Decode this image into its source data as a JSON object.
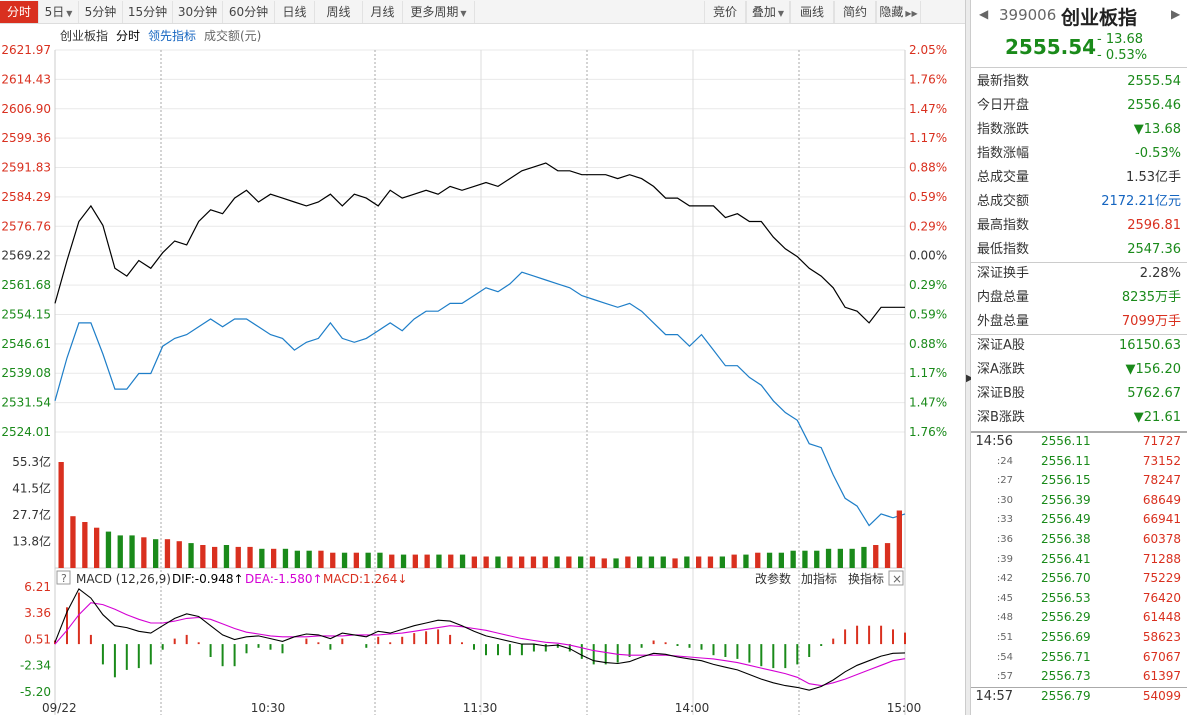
{
  "toolbar": {
    "tabs": [
      "分时",
      "5日",
      "5分钟",
      "15分钟",
      "30分钟",
      "60分钟",
      "日线",
      "周线",
      "月线",
      "更多周期"
    ],
    "right": [
      "竞价",
      "叠加",
      "画线",
      "简约",
      "隐藏"
    ]
  },
  "chart": {
    "legend": {
      "name": "创业板指",
      "period": "分时",
      "lead": "领先指标",
      "vol": "成交额(元)"
    },
    "price_labels": [
      "2621.97",
      "2614.43",
      "2606.90",
      "2599.36",
      "2591.83",
      "2584.29",
      "2576.76",
      "2569.22",
      "2561.68",
      "2554.15",
      "2546.61",
      "2539.08",
      "2531.54",
      "2524.01"
    ],
    "pct_labels": [
      "2.05%",
      "1.76%",
      "1.47%",
      "1.17%",
      "0.88%",
      "0.59%",
      "0.29%",
      "0.00%",
      "0.29%",
      "0.59%",
      "0.88%",
      "1.17%",
      "1.47%",
      "1.76%"
    ],
    "vol_labels": [
      "55.3亿",
      "41.5亿",
      "27.7亿",
      "13.8亿"
    ],
    "macd_labels": [
      "6.21",
      "3.36",
      "0.51",
      "-2.34",
      "-5.20"
    ],
    "macd_header": {
      "help": "?",
      "name": "MACD (12,26,9)",
      "dif": "DIF:-0.948↑",
      "dea": "DEA:-1.580↑",
      "macd": "MACD:1.264↓",
      "btn1": "改参数",
      "btn2": "加指标",
      "btn3": "换指标",
      "close": "×"
    },
    "time_labels": [
      "09/22",
      "10:30",
      "11:30",
      "14:00",
      "15:00"
    ],
    "colors": {
      "up": "#d9301f",
      "down": "#1a8a1a",
      "price_line": "#000000",
      "lead_line": "#1e7ec8",
      "dif": "#000000",
      "dea": "#d400d4"
    }
  },
  "chart_data": {
    "type": "line",
    "title": "创业板指 分时",
    "prev_close": 2569.22,
    "ylim": [
      2524.01,
      2621.97
    ],
    "price": [
      2557,
      2568,
      2578,
      2582,
      2577,
      2566,
      2564,
      2568,
      2566,
      2570,
      2573,
      2572,
      2578,
      2581,
      2580,
      2584,
      2586,
      2583,
      2585,
      2584,
      2583,
      2582,
      2583,
      2585,
      2582,
      2585,
      2584,
      2582,
      2586,
      2584,
      2585,
      2586,
      2585,
      2587,
      2586,
      2587,
      2588,
      2587,
      2589,
      2591,
      2592,
      2593,
      2591,
      2591,
      2590,
      2590,
      2590,
      2589,
      2590,
      2589,
      2587,
      2584,
      2584,
      2582,
      2582,
      2582,
      2579,
      2580,
      2578,
      2578,
      2574,
      2571,
      2569,
      2566,
      2564,
      2561,
      2556,
      2555,
      2552,
      2556,
      2556,
      2556
    ],
    "lead": [
      2532,
      2543,
      2552,
      2552,
      2544,
      2535,
      2535,
      2539,
      2539,
      2546,
      2548,
      2549,
      2551,
      2553,
      2551,
      2553,
      2553,
      2551,
      2549,
      2548,
      2545,
      2547,
      2548,
      2552,
      2548,
      2547,
      2548,
      2550,
      2552,
      2550,
      2553,
      2555,
      2555,
      2557,
      2557,
      2559,
      2561,
      2560,
      2562,
      2565,
      2564,
      2563,
      2562,
      2561,
      2559,
      2558,
      2557,
      2556,
      2557,
      2555,
      2552,
      2549,
      2549,
      2546,
      2549,
      2545,
      2541,
      2541,
      2538,
      2536,
      2532,
      2529,
      2527,
      2521,
      2520,
      2513,
      2507,
      2505,
      2500,
      2503,
      2502,
      2503
    ],
    "volume": [
      55.3,
      27,
      24,
      21,
      19,
      17,
      17,
      16,
      15,
      15,
      14,
      13,
      12,
      11,
      12,
      11,
      11,
      10,
      10,
      10,
      9,
      9,
      9,
      8,
      8,
      8,
      8,
      8,
      7,
      7,
      7,
      7,
      7,
      7,
      7,
      6,
      6,
      6,
      6,
      6,
      6,
      6,
      6,
      6,
      6,
      6,
      5,
      5,
      6,
      6,
      6,
      6,
      5,
      6,
      6,
      6,
      6,
      7,
      7,
      8,
      8,
      8,
      9,
      9,
      9,
      10,
      10,
      10,
      11,
      12,
      13,
      30
    ],
    "macd": {
      "dif": [
        0.2,
        3.5,
        6.0,
        5.0,
        3.2,
        2.0,
        1.8,
        1.4,
        1.2,
        2.0,
        2.8,
        3.3,
        3.0,
        2.0,
        1.0,
        0.5,
        0.8,
        0.9,
        0.6,
        0.3,
        0.8,
        1.1,
        1.0,
        0.6,
        1.2,
        1.0,
        0.8,
        1.4,
        1.2,
        1.6,
        2.0,
        2.3,
        2.6,
        2.5,
        2.0,
        1.4,
        0.9,
        0.6,
        0.3,
        0.0,
        0.0,
        -0.2,
        -0.1,
        -0.5,
        -1.2,
        -1.8,
        -2.0,
        -2.1,
        -1.9,
        -1.4,
        -1.0,
        -1.1,
        -1.4,
        -1.6,
        -1.8,
        -2.2,
        -2.5,
        -2.8,
        -3.3,
        -3.8,
        -4.2,
        -4.5,
        -4.7,
        -5.0,
        -4.6,
        -3.9,
        -3.0,
        -2.3,
        -1.8,
        -1.3,
        -1.0,
        -0.95
      ],
      "dea": [
        0.0,
        1.5,
        3.2,
        4.5,
        4.3,
        3.8,
        3.2,
        2.7,
        2.3,
        2.3,
        2.5,
        2.8,
        2.9,
        2.7,
        2.2,
        1.7,
        1.3,
        1.1,
        0.9,
        0.8,
        0.8,
        0.8,
        0.9,
        0.9,
        0.9,
        1.0,
        1.0,
        1.0,
        1.1,
        1.2,
        1.4,
        1.6,
        1.8,
        2.0,
        1.9,
        1.7,
        1.5,
        1.2,
        0.9,
        0.6,
        0.4,
        0.2,
        0.1,
        -0.1,
        -0.4,
        -0.7,
        -0.9,
        -1.1,
        -1.2,
        -1.2,
        -1.2,
        -1.2,
        -1.3,
        -1.4,
        -1.5,
        -1.6,
        -1.8,
        -2.0,
        -2.3,
        -2.6,
        -2.9,
        -3.2,
        -3.6,
        -4.3,
        -4.5,
        -4.2,
        -3.8,
        -3.3,
        -2.8,
        -2.3,
        -1.8,
        -1.58
      ],
      "hist": [
        0.4,
        4.0,
        5.6,
        1.0,
        -2.2,
        -3.6,
        -2.8,
        -2.6,
        -2.2,
        -0.6,
        0.6,
        1.0,
        0.2,
        -1.4,
        -2.4,
        -2.4,
        -1.0,
        -0.4,
        -0.6,
        -1.0,
        0.0,
        0.6,
        0.2,
        -0.6,
        0.6,
        0.0,
        -0.4,
        0.8,
        0.2,
        0.8,
        1.2,
        1.4,
        1.6,
        1.0,
        0.2,
        -0.6,
        -1.2,
        -1.2,
        -1.2,
        -1.2,
        -0.8,
        -0.8,
        -0.4,
        -0.8,
        -1.6,
        -2.2,
        -2.2,
        -2.0,
        -1.4,
        -0.4,
        0.4,
        0.2,
        -0.2,
        -0.4,
        -0.6,
        -1.2,
        -1.4,
        -1.6,
        -2.0,
        -2.4,
        -2.6,
        -2.6,
        -2.2,
        -1.4,
        -0.2,
        0.6,
        1.6,
        2.0,
        2.0,
        2.0,
        1.6,
        1.26
      ]
    }
  },
  "panel": {
    "code": "399006",
    "name": "创业板指",
    "price": "2555.54",
    "change": "- 13.68",
    "change_pct": "- 0.53%",
    "stats": [
      {
        "label": "最新指数",
        "value": "2555.54",
        "color": "green"
      },
      {
        "label": "今日开盘",
        "value": "2556.46",
        "color": "green"
      },
      {
        "label": "指数涨跌",
        "value": "▼13.68",
        "color": "green"
      },
      {
        "label": "指数涨幅",
        "value": "-0.53%",
        "color": "green"
      },
      {
        "label": "总成交量",
        "value": "1.53亿手",
        "color": "black"
      },
      {
        "label": "总成交额",
        "value": "2172.21亿元",
        "color": "blue"
      },
      {
        "label": "最高指数",
        "value": "2596.81",
        "color": "red"
      },
      {
        "label": "最低指数",
        "value": "2547.36",
        "color": "green"
      },
      {
        "label": "深证换手",
        "value": "2.28%",
        "color": "black"
      },
      {
        "label": "内盘总量",
        "value": "8235万手",
        "color": "green"
      },
      {
        "label": "外盘总量",
        "value": "7099万手",
        "color": "red"
      },
      {
        "label": "深证A股",
        "value": "16150.63",
        "color": "green"
      },
      {
        "label": "深A涨跌",
        "value": "▼156.20",
        "color": "green"
      },
      {
        "label": "深证B股",
        "value": "5762.67",
        "color": "green"
      },
      {
        "label": "深B涨跌",
        "value": "▼21.61",
        "color": "green"
      }
    ],
    "ticks": [
      {
        "t": "14:56",
        "p": "2556.11",
        "v": "71727"
      },
      {
        "t": ":24",
        "p": "2556.11",
        "v": "73152"
      },
      {
        "t": ":27",
        "p": "2556.15",
        "v": "78247"
      },
      {
        "t": ":30",
        "p": "2556.39",
        "v": "68649"
      },
      {
        "t": ":33",
        "p": "2556.49",
        "v": "66941"
      },
      {
        "t": ":36",
        "p": "2556.38",
        "v": "60378"
      },
      {
        "t": ":39",
        "p": "2556.41",
        "v": "71288"
      },
      {
        "t": ":42",
        "p": "2556.70",
        "v": "75229"
      },
      {
        "t": ":45",
        "p": "2556.53",
        "v": "76420"
      },
      {
        "t": ":48",
        "p": "2556.29",
        "v": "61448"
      },
      {
        "t": ":51",
        "p": "2556.69",
        "v": "58623"
      },
      {
        "t": ":54",
        "p": "2556.71",
        "v": "67067"
      },
      {
        "t": ":57",
        "p": "2556.73",
        "v": "61397"
      },
      {
        "t": "14:57",
        "p": "2556.79",
        "v": "54099"
      }
    ]
  }
}
